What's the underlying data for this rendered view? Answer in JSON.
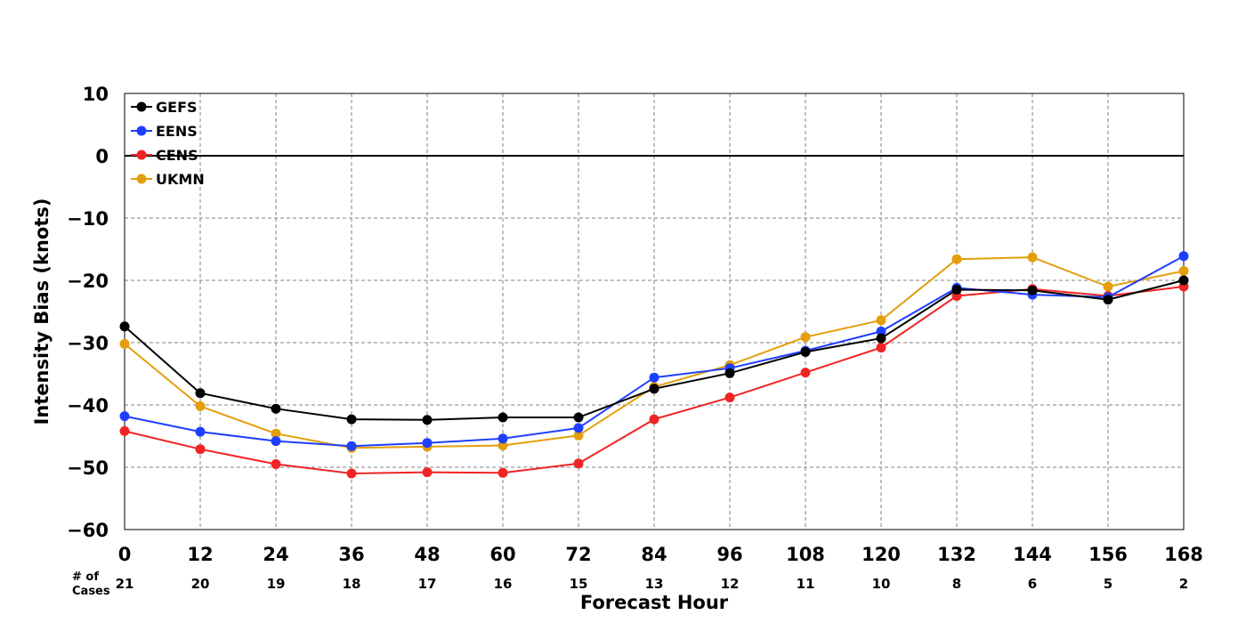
{
  "chart_data": {
    "type": "line",
    "title": "",
    "xlabel": "Forecast Hour",
    "ylabel": "Intensity Bias (knots)",
    "x": [
      0,
      12,
      24,
      36,
      48,
      60,
      72,
      84,
      96,
      108,
      120,
      132,
      144,
      156,
      168
    ],
    "xlim": [
      0,
      168
    ],
    "ylim": [
      -60,
      10
    ],
    "yticks": [
      10,
      0,
      -10,
      -20,
      -30,
      -40,
      -50,
      -60
    ],
    "ytick_labels": [
      "10",
      "0",
      "−10",
      "−20",
      "−30",
      "−40",
      "−50",
      "−60"
    ],
    "xtick_labels": [
      "0",
      "12",
      "24",
      "36",
      "48",
      "60",
      "72",
      "84",
      "96",
      "108",
      "120",
      "132",
      "144",
      "156",
      "168"
    ],
    "grid": true,
    "zero_line": true,
    "legend_position": "top-left",
    "cases_header": [
      "# of",
      "Cases"
    ],
    "cases": [
      "21",
      "20",
      "19",
      "18",
      "17",
      "16",
      "15",
      "13",
      "12",
      "11",
      "10",
      "8",
      "6",
      "5",
      "2"
    ],
    "series": [
      {
        "name": "GEFS",
        "color": "#000000",
        "values": [
          -27.4,
          -38.1,
          -40.6,
          -42.3,
          -42.4,
          -42.0,
          -42.0,
          -37.4,
          -34.9,
          -31.5,
          -29.3,
          -21.5,
          -21.6,
          -23.1,
          -20.0
        ]
      },
      {
        "name": "EENS",
        "color": "#1f3fff",
        "values": [
          -41.8,
          -44.3,
          -45.8,
          -46.6,
          -46.1,
          -45.4,
          -43.7,
          -35.6,
          -34.1,
          -31.3,
          -28.2,
          -21.2,
          -22.3,
          -22.7,
          -16.1
        ]
      },
      {
        "name": "CENS",
        "color": "#f02424",
        "values": [
          -44.2,
          -47.1,
          -49.5,
          -51.0,
          -50.8,
          -50.9,
          -49.4,
          -42.3,
          -38.8,
          -34.8,
          -30.8,
          -22.5,
          -21.4,
          -22.5,
          -21.0
        ]
      },
      {
        "name": "UKMN",
        "color": "#e39e0b",
        "values": [
          -30.2,
          -40.2,
          -44.6,
          -46.9,
          -46.7,
          -46.5,
          -44.9,
          -37.1,
          -33.6,
          -29.1,
          -26.4,
          -16.6,
          -16.3,
          -21.0,
          -18.5
        ]
      }
    ]
  }
}
